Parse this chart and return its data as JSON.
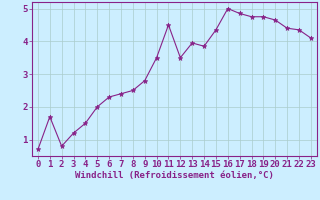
{
  "x": [
    0,
    1,
    2,
    3,
    4,
    5,
    6,
    7,
    8,
    9,
    10,
    11,
    12,
    13,
    14,
    15,
    16,
    17,
    18,
    19,
    20,
    21,
    22,
    23
  ],
  "y": [
    0.7,
    1.7,
    0.8,
    1.2,
    1.5,
    2.0,
    2.3,
    2.4,
    2.5,
    2.8,
    3.5,
    4.5,
    3.5,
    3.95,
    3.85,
    4.35,
    5.0,
    4.85,
    4.75,
    4.75,
    4.65,
    4.4,
    4.35,
    4.1
  ],
  "line_color": "#882288",
  "marker": "*",
  "marker_size": 3.5,
  "bg_color": "#cceeff",
  "grid_color": "#aacccc",
  "xlabel": "Windchill (Refroidissement éolien,°C)",
  "tick_color": "#882288",
  "ylim": [
    0.5,
    5.2
  ],
  "xlim": [
    -0.5,
    23.5
  ],
  "yticks": [
    1,
    2,
    3,
    4,
    5
  ],
  "xticks": [
    0,
    1,
    2,
    3,
    4,
    5,
    6,
    7,
    8,
    9,
    10,
    11,
    12,
    13,
    14,
    15,
    16,
    17,
    18,
    19,
    20,
    21,
    22,
    23
  ],
  "spine_color": "#882288",
  "font_size_xlabel": 6.5,
  "font_size_ticks": 6.5,
  "linewidth": 0.8
}
